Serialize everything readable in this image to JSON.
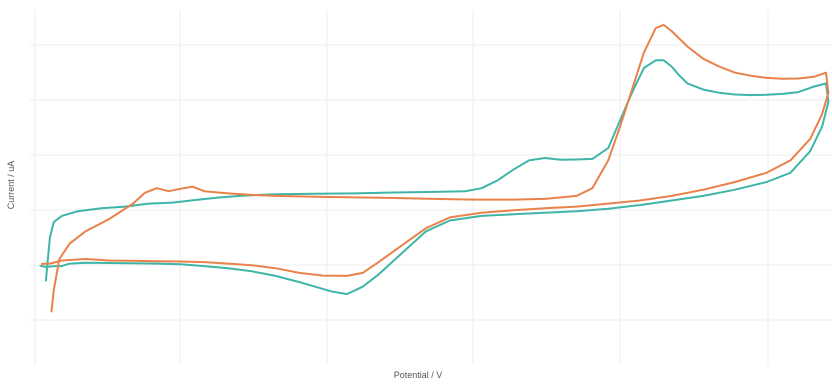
{
  "chart_data": {
    "type": "line",
    "title": "",
    "xlabel": "Potential / V",
    "ylabel": "Current / uA",
    "xlim": [
      0,
      100
    ],
    "ylim": [
      0,
      100
    ],
    "grid": true,
    "legend": "none",
    "colors": {
      "teal": "#3fb5a8",
      "orange": "#e8824a",
      "grid": "#ececec"
    },
    "series": [
      {
        "color": "#3fb5a8",
        "points": [
          [
            1,
            18
          ],
          [
            1.5,
            32
          ],
          [
            2,
            37
          ],
          [
            3,
            39
          ],
          [
            5,
            40.5
          ],
          [
            8,
            41.5
          ],
          [
            11,
            42
          ],
          [
            14,
            43
          ],
          [
            17,
            43.3
          ],
          [
            20,
            44.2
          ],
          [
            23,
            45
          ],
          [
            26,
            45.6
          ],
          [
            30,
            46
          ],
          [
            35,
            46.2
          ],
          [
            40,
            46.3
          ],
          [
            45,
            46.6
          ],
          [
            50,
            46.8
          ],
          [
            54,
            47
          ],
          [
            56,
            48
          ],
          [
            58,
            50.5
          ],
          [
            60,
            54
          ],
          [
            62,
            57
          ],
          [
            64,
            57.8
          ],
          [
            66,
            57.2
          ],
          [
            68,
            57.3
          ],
          [
            70,
            57.5
          ],
          [
            72,
            61
          ],
          [
            73.5,
            70
          ],
          [
            75,
            79
          ],
          [
            76.5,
            87
          ],
          [
            78,
            89.5
          ],
          [
            79,
            89.5
          ],
          [
            80,
            87.5
          ],
          [
            81,
            84.5
          ],
          [
            82,
            82
          ],
          [
            84,
            80
          ],
          [
            86,
            79
          ],
          [
            88,
            78.4
          ],
          [
            90,
            78.2
          ],
          [
            92,
            78.3
          ],
          [
            94,
            78.6
          ],
          [
            96,
            79.2
          ],
          [
            98,
            81
          ],
          [
            99.5,
            82
          ],
          [
            99.8,
            76
          ],
          [
            99,
            68
          ],
          [
            97.5,
            60
          ],
          [
            95,
            53
          ],
          [
            92,
            50
          ],
          [
            88,
            47.5
          ],
          [
            84,
            45.5
          ],
          [
            80,
            44
          ],
          [
            76,
            42.5
          ],
          [
            72,
            41.3
          ],
          [
            68,
            40.5
          ],
          [
            64,
            40
          ],
          [
            60,
            39.5
          ],
          [
            56,
            39
          ],
          [
            52,
            37.5
          ],
          [
            49,
            34
          ],
          [
            46,
            27
          ],
          [
            43,
            20
          ],
          [
            41,
            16
          ],
          [
            39,
            13.6
          ],
          [
            37,
            14.5
          ],
          [
            35,
            16
          ],
          [
            33,
            17.5
          ],
          [
            30,
            19.5
          ],
          [
            27,
            21
          ],
          [
            24,
            22
          ],
          [
            21,
            22.7
          ],
          [
            18,
            23.3
          ],
          [
            15,
            23.5
          ],
          [
            12,
            23.6
          ],
          [
            9,
            23.7
          ],
          [
            6,
            23.8
          ],
          [
            4,
            23.5
          ],
          [
            3,
            22.7
          ],
          [
            2,
            22.7
          ],
          [
            1,
            22.4
          ],
          [
            0.3,
            22.8
          ]
        ]
      },
      {
        "color": "#e8824a",
        "points": [
          [
            1.7,
            8
          ],
          [
            2,
            15
          ],
          [
            2.7,
            25
          ],
          [
            4,
            30
          ],
          [
            6,
            34
          ],
          [
            9,
            38
          ],
          [
            12,
            43
          ],
          [
            13.5,
            46.5
          ],
          [
            15,
            48
          ],
          [
            16.5,
            47
          ],
          [
            18,
            47.8
          ],
          [
            19.5,
            48.5
          ],
          [
            21,
            47
          ],
          [
            24,
            46.3
          ],
          [
            27,
            45.8
          ],
          [
            30,
            45.5
          ],
          [
            35,
            45.2
          ],
          [
            40,
            45
          ],
          [
            45,
            44.8
          ],
          [
            50,
            44.5
          ],
          [
            55,
            44.3
          ],
          [
            60,
            44.3
          ],
          [
            64,
            44.5
          ],
          [
            68,
            45.5
          ],
          [
            70,
            48
          ],
          [
            72,
            57
          ],
          [
            73.5,
            68
          ],
          [
            75,
            80
          ],
          [
            76.5,
            92
          ],
          [
            78,
            100
          ],
          [
            79,
            101
          ],
          [
            80,
            99
          ],
          [
            82,
            94
          ],
          [
            84,
            90
          ],
          [
            86,
            87.5
          ],
          [
            88,
            85.5
          ],
          [
            90,
            84.5
          ],
          [
            92,
            83.8
          ],
          [
            94,
            83.5
          ],
          [
            96,
            83.6
          ],
          [
            98,
            84.2
          ],
          [
            99.5,
            85.5
          ],
          [
            99.8,
            79
          ],
          [
            99,
            72
          ],
          [
            97.5,
            64
          ],
          [
            95,
            57
          ],
          [
            92,
            53
          ],
          [
            88,
            50
          ],
          [
            84,
            47.5
          ],
          [
            80,
            45.5
          ],
          [
            76,
            44
          ],
          [
            72,
            43
          ],
          [
            68,
            42
          ],
          [
            64,
            41.5
          ],
          [
            60,
            40.8
          ],
          [
            56,
            40
          ],
          [
            52,
            38.5
          ],
          [
            49,
            35
          ],
          [
            46,
            29.5
          ],
          [
            43,
            24
          ],
          [
            41,
            20.5
          ],
          [
            39,
            19.5
          ],
          [
            36,
            19.6
          ],
          [
            33,
            20.5
          ],
          [
            30,
            22
          ],
          [
            27,
            23
          ],
          [
            24,
            23.5
          ],
          [
            21,
            24
          ],
          [
            18,
            24.2
          ],
          [
            15,
            24.3
          ],
          [
            12,
            24.4
          ],
          [
            9,
            24.5
          ],
          [
            6,
            25
          ],
          [
            3,
            24.5
          ],
          [
            1.5,
            23.5
          ],
          [
            0.5,
            23.4
          ]
        ]
      }
    ]
  }
}
